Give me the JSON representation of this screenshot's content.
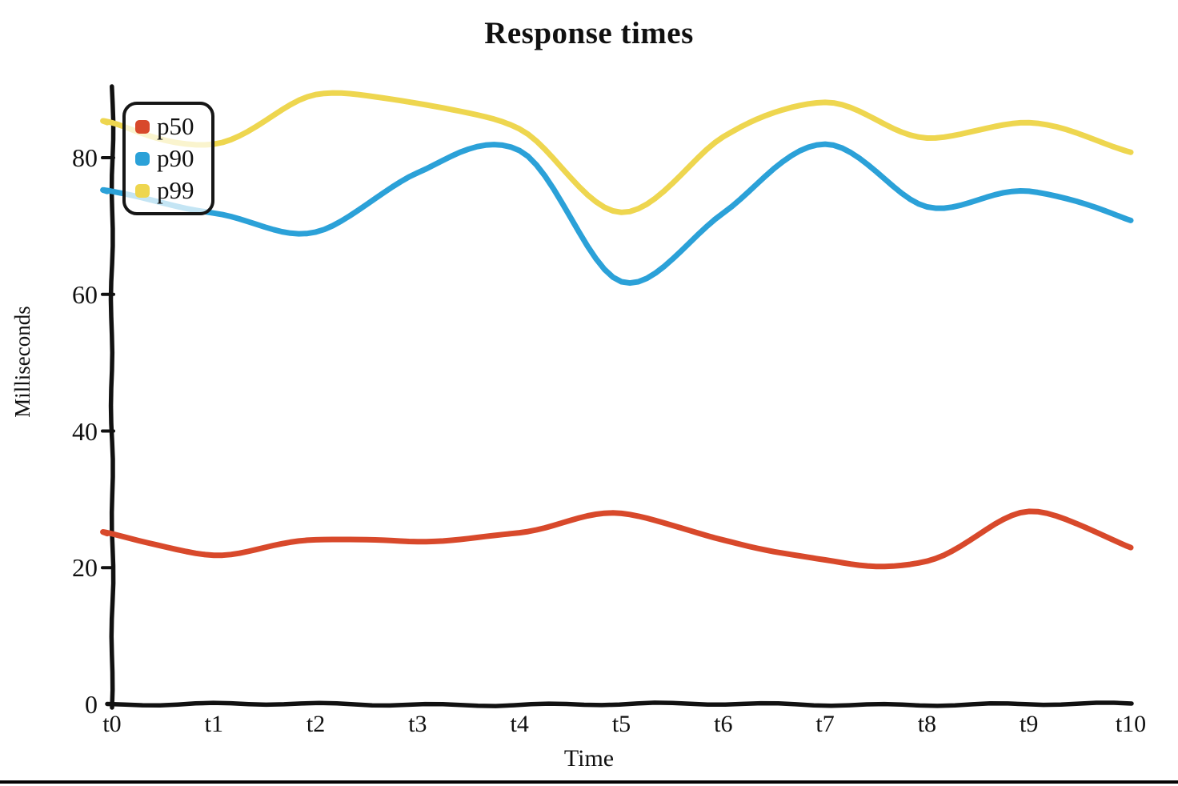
{
  "page": {
    "background": "#ffffff",
    "bottom_rule_color": "#050505"
  },
  "chart_data": {
    "type": "line",
    "title": "Response times",
    "xlabel": "Time",
    "ylabel": "Milliseconds",
    "categories": [
      "t0",
      "t1",
      "t2",
      "t3",
      "t4",
      "t5",
      "t6",
      "t7",
      "t8",
      "t9",
      "t10"
    ],
    "y_ticks": [
      0,
      20,
      40,
      60,
      80
    ],
    "ylim": [
      0,
      93
    ],
    "grid": false,
    "legend_position": "top-left",
    "style": "hand-drawn-xkcd",
    "axis_color": "#111111",
    "series": [
      {
        "name": "p50",
        "color": "#d8492b",
        "values": [
          25,
          22,
          24,
          24,
          25,
          28,
          24,
          21,
          21,
          28,
          23
        ]
      },
      {
        "name": "p90",
        "color": "#2ba1d8",
        "values": [
          75,
          72,
          69,
          78,
          81,
          62,
          72,
          82,
          73,
          75,
          71
        ]
      },
      {
        "name": "p99",
        "color": "#eed64f",
        "values": [
          85,
          82,
          89,
          88,
          84,
          72,
          83,
          88,
          83,
          85,
          81
        ]
      }
    ]
  }
}
